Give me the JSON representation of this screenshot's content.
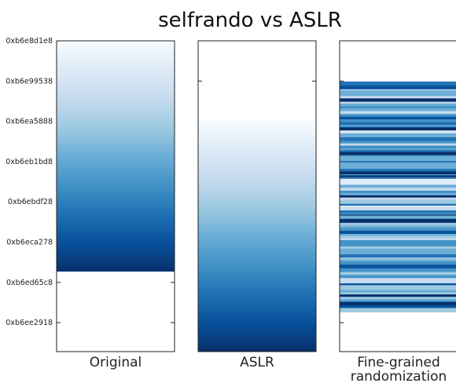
{
  "chart_data": {
    "type": "heatmap",
    "title": "selfrando vs ASLR",
    "y_ticks": [
      "0xb6e8d1e8",
      "0xb6e99538",
      "0xb6ea5888",
      "0xb6eb1bd8",
      "0xb6ebdf28",
      "0xb6eca278",
      "0xb6ed65c8",
      "0xb6ee2918"
    ],
    "y_range": [
      "0xb6e8d1e8",
      "0xb6eeb000"
    ],
    "colormap": "Blues",
    "panels": [
      {
        "label": "Original",
        "filled_range": [
          0.0,
          0.742
        ],
        "ordering": "sequential"
      },
      {
        "label": "ASLR",
        "filled_range": [
          0.258,
          1.0
        ],
        "ordering": "sequential"
      },
      {
        "label": "Fine-grained randomization",
        "label_lines": [
          "Fine-grained",
          "randomization"
        ],
        "filled_range": [
          0.131,
          0.873
        ],
        "ordering": "shuffled"
      }
    ]
  }
}
